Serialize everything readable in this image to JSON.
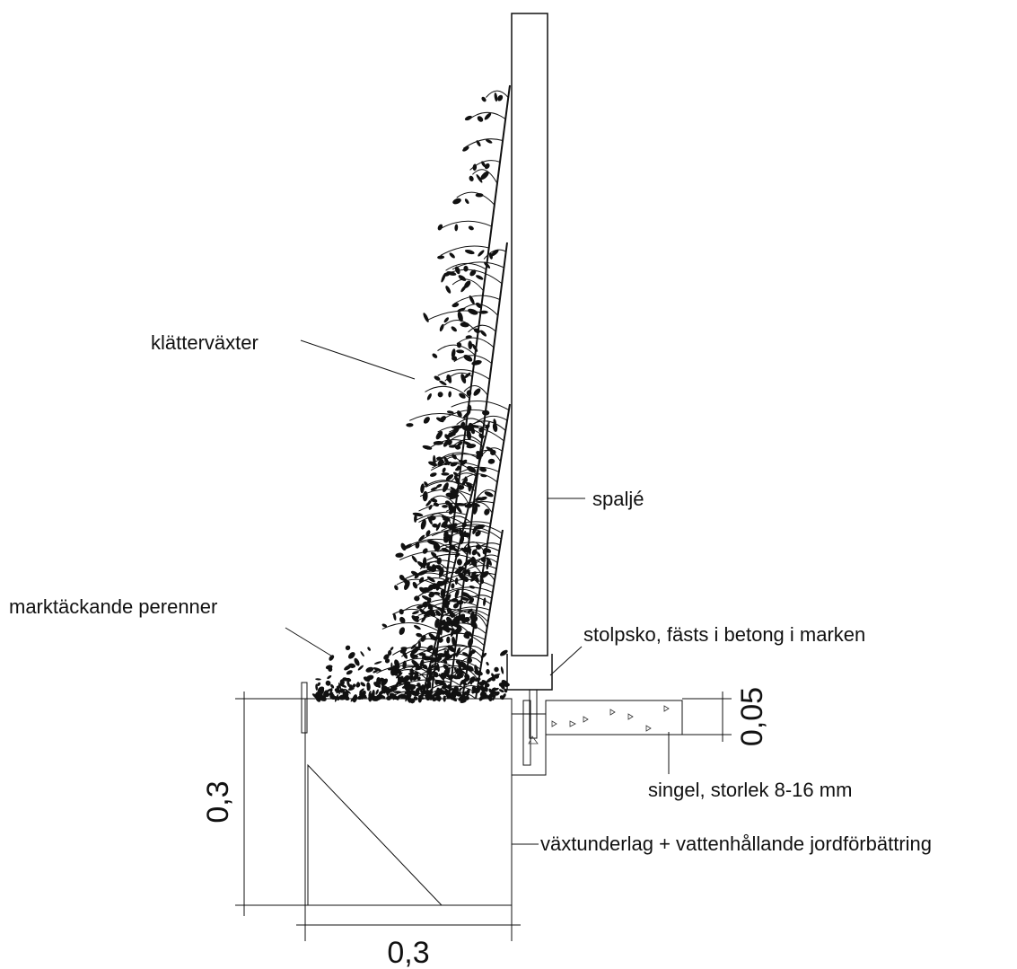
{
  "labels": {
    "climbers": "klätterväxter",
    "trellis": "spaljé",
    "groundcover": "marktäckande perenner",
    "post_shoe": "stolpsko, fästs i betong i marken",
    "gravel": "singel, storlek 8-16 mm",
    "soil": "växtunderlag + vattenhållande jordförbättring"
  },
  "dimensions": {
    "height": "0,3",
    "width": "0,3",
    "gravel_depth": "0,05"
  }
}
